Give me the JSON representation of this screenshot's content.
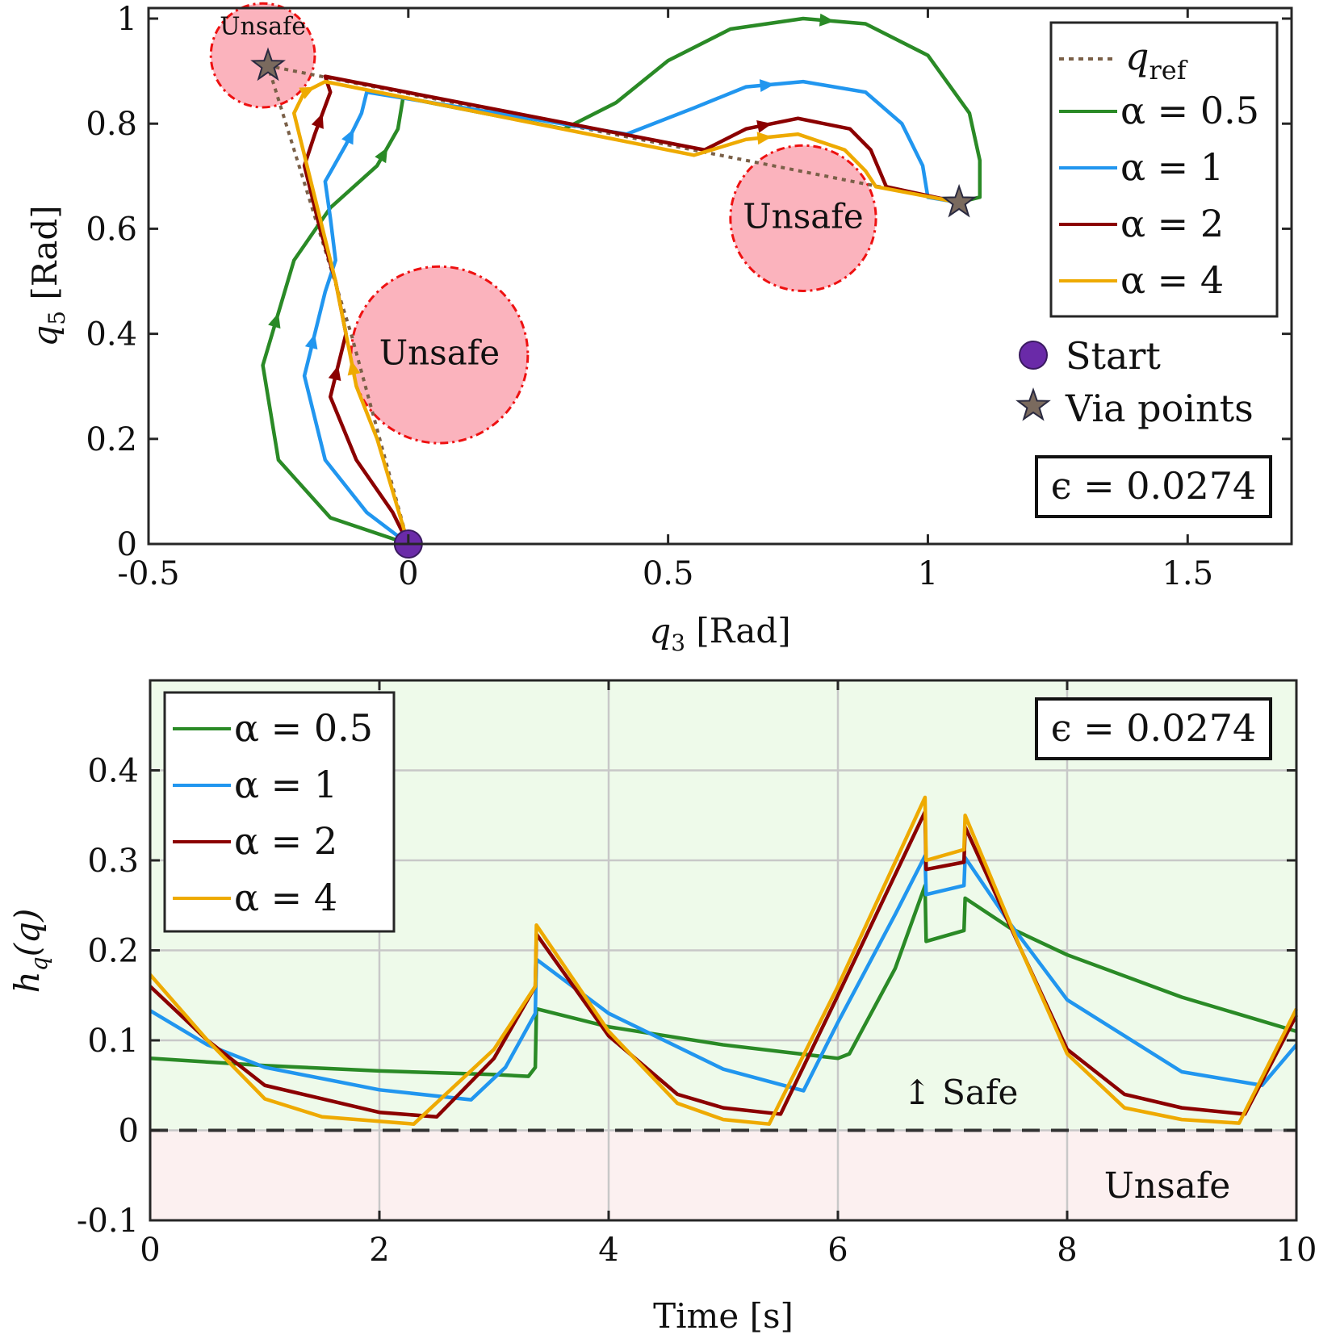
{
  "colors": {
    "green": "#2a8a26",
    "blue": "#2196ef",
    "red": "#8b0000",
    "yellow": "#eeaa00",
    "ref": "#7a6048",
    "unsafe_fill": "#fbb3bd",
    "unsafe_edge": "#ee1111",
    "start": "#6a2aa8",
    "via": "#7a6a5e",
    "safe_bg": "#eefaea",
    "unsafe_bg": "#fcf0f0"
  },
  "chart_data": [
    {
      "type": "line",
      "title": "",
      "xlabel_main": "q",
      "xlabel_sub": "3",
      "xlabel_unit": " [Rad]",
      "ylabel_main": "q",
      "ylabel_sub": "5",
      "ylabel_unit": " [Rad]",
      "xlim": [
        -0.5,
        1.7
      ],
      "ylim": [
        0,
        1.02
      ],
      "xticks": [
        -0.5,
        0,
        0.5,
        1,
        1.5
      ],
      "xtick_labels": [
        "-0.5",
        "0",
        "0.5",
        "1",
        "1.5"
      ],
      "yticks": [
        0,
        0.2,
        0.4,
        0.6,
        0.8,
        1
      ],
      "ytick_labels": [
        "0",
        "0.2",
        "0.4",
        "0.6",
        "0.8",
        "1"
      ],
      "grid": false,
      "legend_position": "top-right",
      "legend": {
        "ref_main": "q",
        "ref_sub": "ref",
        "entries": [
          "α = 0.5",
          "α = 1",
          "α = 2",
          "α = 4"
        ],
        "start_label": "Start",
        "via_label": "Via points"
      },
      "epsilon_label": "ϵ = 0.0274",
      "unsafe_regions": [
        {
          "cx": -0.28,
          "cy": 0.93,
          "r": 0.1,
          "label": "Unsafe"
        },
        {
          "cx": 0.06,
          "cy": 0.36,
          "r": 0.17,
          "label": "Unsafe"
        },
        {
          "cx": 0.76,
          "cy": 0.62,
          "r": 0.14,
          "label": "Unsafe"
        }
      ],
      "start": [
        0,
        0
      ],
      "via_points": [
        [
          -0.27,
          0.91
        ],
        [
          1.06,
          0.65
        ]
      ],
      "reference": [
        [
          0,
          0
        ],
        [
          -0.11,
          0.4
        ],
        [
          -0.27,
          0.91
        ],
        [
          1.06,
          0.65
        ]
      ],
      "series": [
        {
          "name": "α = 0.5",
          "color_key": "green",
          "points": [
            [
              0,
              0
            ],
            [
              -0.15,
              0.05
            ],
            [
              -0.25,
              0.16
            ],
            [
              -0.28,
              0.34
            ],
            [
              -0.22,
              0.54
            ],
            [
              -0.15,
              0.64
            ],
            [
              -0.06,
              0.72
            ],
            [
              -0.02,
              0.79
            ],
            [
              -0.01,
              0.85
            ],
            [
              0.3,
              0.79
            ],
            [
              0.4,
              0.84
            ],
            [
              0.5,
              0.92
            ],
            [
              0.62,
              0.98
            ],
            [
              0.76,
              1.0
            ],
            [
              0.88,
              0.99
            ],
            [
              1.0,
              0.93
            ],
            [
              1.08,
              0.82
            ],
            [
              1.1,
              0.73
            ],
            [
              1.1,
              0.66
            ],
            [
              1.06,
              0.65
            ]
          ],
          "arrow_indices": [
            3,
            6,
            13
          ]
        },
        {
          "name": "α = 1",
          "color_key": "blue",
          "points": [
            [
              0,
              0
            ],
            [
              -0.08,
              0.06
            ],
            [
              -0.16,
              0.16
            ],
            [
              -0.2,
              0.32
            ],
            [
              -0.16,
              0.48
            ],
            [
              -0.14,
              0.54
            ],
            [
              -0.15,
              0.62
            ],
            [
              -0.16,
              0.69
            ],
            [
              -0.12,
              0.76
            ],
            [
              -0.09,
              0.82
            ],
            [
              -0.08,
              0.86
            ],
            [
              0.42,
              0.78
            ],
            [
              0.55,
              0.83
            ],
            [
              0.65,
              0.87
            ],
            [
              0.76,
              0.88
            ],
            [
              0.88,
              0.86
            ],
            [
              0.95,
              0.8
            ],
            [
              0.99,
              0.72
            ],
            [
              1.0,
              0.66
            ],
            [
              1.06,
              0.65
            ]
          ],
          "arrow_indices": [
            3,
            8,
            13
          ]
        },
        {
          "name": "α = 2",
          "color_key": "red",
          "points": [
            [
              0,
              0
            ],
            [
              -0.03,
              0.06
            ],
            [
              -0.1,
              0.16
            ],
            [
              -0.15,
              0.28
            ],
            [
              -0.12,
              0.4
            ],
            [
              -0.14,
              0.5
            ],
            [
              -0.17,
              0.6
            ],
            [
              -0.2,
              0.72
            ],
            [
              -0.18,
              0.78
            ],
            [
              -0.15,
              0.86
            ],
            [
              -0.16,
              0.89
            ],
            [
              0.57,
              0.75
            ],
            [
              0.65,
              0.79
            ],
            [
              0.75,
              0.81
            ],
            [
              0.85,
              0.79
            ],
            [
              0.89,
              0.75
            ],
            [
              0.92,
              0.68
            ],
            [
              1.06,
              0.65
            ]
          ],
          "arrow_indices": [
            3,
            8,
            12
          ]
        },
        {
          "name": "α = 4",
          "color_key": "yellow",
          "points": [
            [
              0,
              0
            ],
            [
              -0.03,
              0.1
            ],
            [
              -0.06,
              0.2
            ],
            [
              -0.1,
              0.3
            ],
            [
              -0.12,
              0.4
            ],
            [
              -0.14,
              0.5
            ],
            [
              -0.22,
              0.82
            ],
            [
              -0.2,
              0.86
            ],
            [
              -0.16,
              0.88
            ],
            [
              0.55,
              0.74
            ],
            [
              0.65,
              0.77
            ],
            [
              0.75,
              0.78
            ],
            [
              0.84,
              0.75
            ],
            [
              0.88,
              0.71
            ],
            [
              0.9,
              0.68
            ],
            [
              1.06,
              0.65
            ]
          ],
          "arrow_indices": [
            3,
            7,
            10
          ]
        }
      ]
    },
    {
      "type": "line",
      "title": "",
      "xlabel": "Time [s]",
      "ylabel_main": "h",
      "ylabel_sub": "q",
      "ylabel_unit": "(q)",
      "xlim": [
        0,
        10
      ],
      "ylim": [
        -0.1,
        0.5
      ],
      "xticks": [
        0,
        2,
        4,
        6,
        8,
        10
      ],
      "xtick_labels": [
        "0",
        "2",
        "4",
        "6",
        "8",
        "10"
      ],
      "yticks": [
        -0.1,
        0,
        0.1,
        0.2,
        0.3,
        0.4
      ],
      "ytick_labels": [
        "-0.1",
        "0",
        "0.1",
        "0.2",
        "0.3",
        "0.4"
      ],
      "grid": true,
      "legend_position": "top-left",
      "legend_entries": [
        "α = 0.5",
        "α = 1",
        "α = 2",
        "α = 4"
      ],
      "epsilon_label": "ϵ = 0.0274",
      "safe_label": "↥ Safe",
      "unsafe_label": "Unsafe",
      "threshold": 0,
      "series": [
        {
          "name": "α = 0.5",
          "color_key": "green",
          "points": [
            [
              0,
              0.08
            ],
            [
              1,
              0.072
            ],
            [
              2,
              0.066
            ],
            [
              3,
              0.062
            ],
            [
              3.3,
              0.06
            ],
            [
              3.36,
              0.07
            ],
            [
              3.37,
              0.135
            ],
            [
              4,
              0.115
            ],
            [
              5,
              0.095
            ],
            [
              6,
              0.08
            ],
            [
              6.1,
              0.085
            ],
            [
              6.5,
              0.18
            ],
            [
              6.76,
              0.272
            ],
            [
              6.77,
              0.21
            ],
            [
              7.1,
              0.222
            ],
            [
              7.11,
              0.258
            ],
            [
              7.5,
              0.225
            ],
            [
              8,
              0.195
            ],
            [
              9,
              0.148
            ],
            [
              10,
              0.11
            ]
          ]
        },
        {
          "name": "α = 1",
          "color_key": "blue",
          "points": [
            [
              0,
              0.133
            ],
            [
              0.5,
              0.095
            ],
            [
              1,
              0.07
            ],
            [
              2,
              0.045
            ],
            [
              2.8,
              0.034
            ],
            [
              3.1,
              0.07
            ],
            [
              3.36,
              0.13
            ],
            [
              3.37,
              0.19
            ],
            [
              4,
              0.13
            ],
            [
              5,
              0.068
            ],
            [
              5.7,
              0.044
            ],
            [
              6,
              0.12
            ],
            [
              6.5,
              0.24
            ],
            [
              6.76,
              0.305
            ],
            [
              6.77,
              0.262
            ],
            [
              7.1,
              0.272
            ],
            [
              7.11,
              0.303
            ],
            [
              7.5,
              0.23
            ],
            [
              8,
              0.145
            ],
            [
              9,
              0.065
            ],
            [
              9.7,
              0.05
            ],
            [
              10,
              0.095
            ]
          ]
        },
        {
          "name": "α = 2",
          "color_key": "red",
          "points": [
            [
              0,
              0.16
            ],
            [
              0.5,
              0.1
            ],
            [
              1,
              0.05
            ],
            [
              2,
              0.02
            ],
            [
              2.5,
              0.015
            ],
            [
              3,
              0.08
            ],
            [
              3.36,
              0.16
            ],
            [
              3.37,
              0.218
            ],
            [
              4,
              0.105
            ],
            [
              4.6,
              0.04
            ],
            [
              5,
              0.025
            ],
            [
              5.5,
              0.018
            ],
            [
              6,
              0.15
            ],
            [
              6.76,
              0.354
            ],
            [
              6.77,
              0.29
            ],
            [
              7.1,
              0.298
            ],
            [
              7.11,
              0.337
            ],
            [
              7.6,
              0.2
            ],
            [
              8,
              0.09
            ],
            [
              8.5,
              0.04
            ],
            [
              9,
              0.025
            ],
            [
              9.55,
              0.018
            ],
            [
              10,
              0.128
            ]
          ]
        },
        {
          "name": "α = 4",
          "color_key": "yellow",
          "points": [
            [
              0,
              0.173
            ],
            [
              0.5,
              0.1
            ],
            [
              1,
              0.035
            ],
            [
              1.5,
              0.015
            ],
            [
              2.3,
              0.007
            ],
            [
              3,
              0.09
            ],
            [
              3.36,
              0.16
            ],
            [
              3.37,
              0.228
            ],
            [
              4,
              0.11
            ],
            [
              4.6,
              0.03
            ],
            [
              5,
              0.012
            ],
            [
              5.4,
              0.007
            ],
            [
              6,
              0.16
            ],
            [
              6.76,
              0.37
            ],
            [
              6.77,
              0.3
            ],
            [
              7.1,
              0.312
            ],
            [
              7.11,
              0.35
            ],
            [
              7.6,
              0.2
            ],
            [
              8,
              0.085
            ],
            [
              8.5,
              0.025
            ],
            [
              9,
              0.012
            ],
            [
              9.5,
              0.008
            ],
            [
              10,
              0.135
            ]
          ]
        }
      ]
    }
  ]
}
